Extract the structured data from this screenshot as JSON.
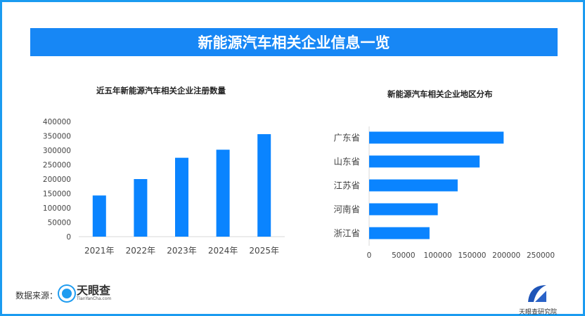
{
  "header": {
    "title": "新能源汽车相关企业信息一览"
  },
  "chart_data": [
    {
      "type": "bar",
      "title": "近五年新能源汽车相关企业注册数量",
      "categories": [
        "2021年",
        "2022年",
        "2023年",
        "2024年",
        "2025年"
      ],
      "values": [
        143000,
        200000,
        274000,
        302000,
        356000
      ],
      "ylim": [
        0,
        400000
      ],
      "yticks": [
        0,
        50000,
        100000,
        150000,
        200000,
        250000,
        300000,
        350000,
        400000
      ],
      "grid": false,
      "color": "#0a84ff"
    },
    {
      "type": "bar",
      "orientation": "horizontal",
      "title": "新能源汽车相关企业地区分布",
      "categories": [
        "广东省",
        "山东省",
        "江苏省",
        "河南省",
        "浙江省"
      ],
      "values": [
        196000,
        161000,
        129000,
        100000,
        88000
      ],
      "xlim": [
        0,
        250000
      ],
      "xticks": [
        0,
        50000,
        100000,
        150000,
        200000,
        250000
      ],
      "grid": false,
      "color": "#0a84ff"
    }
  ],
  "footer": {
    "source_label": "数据来源：",
    "logo_name": "天眼查",
    "logo_url_text": "TianYanCha.com",
    "institute": "天眼查研究院"
  },
  "colors": {
    "banner": "#1787f5",
    "bar": "#0a84ff",
    "frame": "#1a9bf0"
  }
}
